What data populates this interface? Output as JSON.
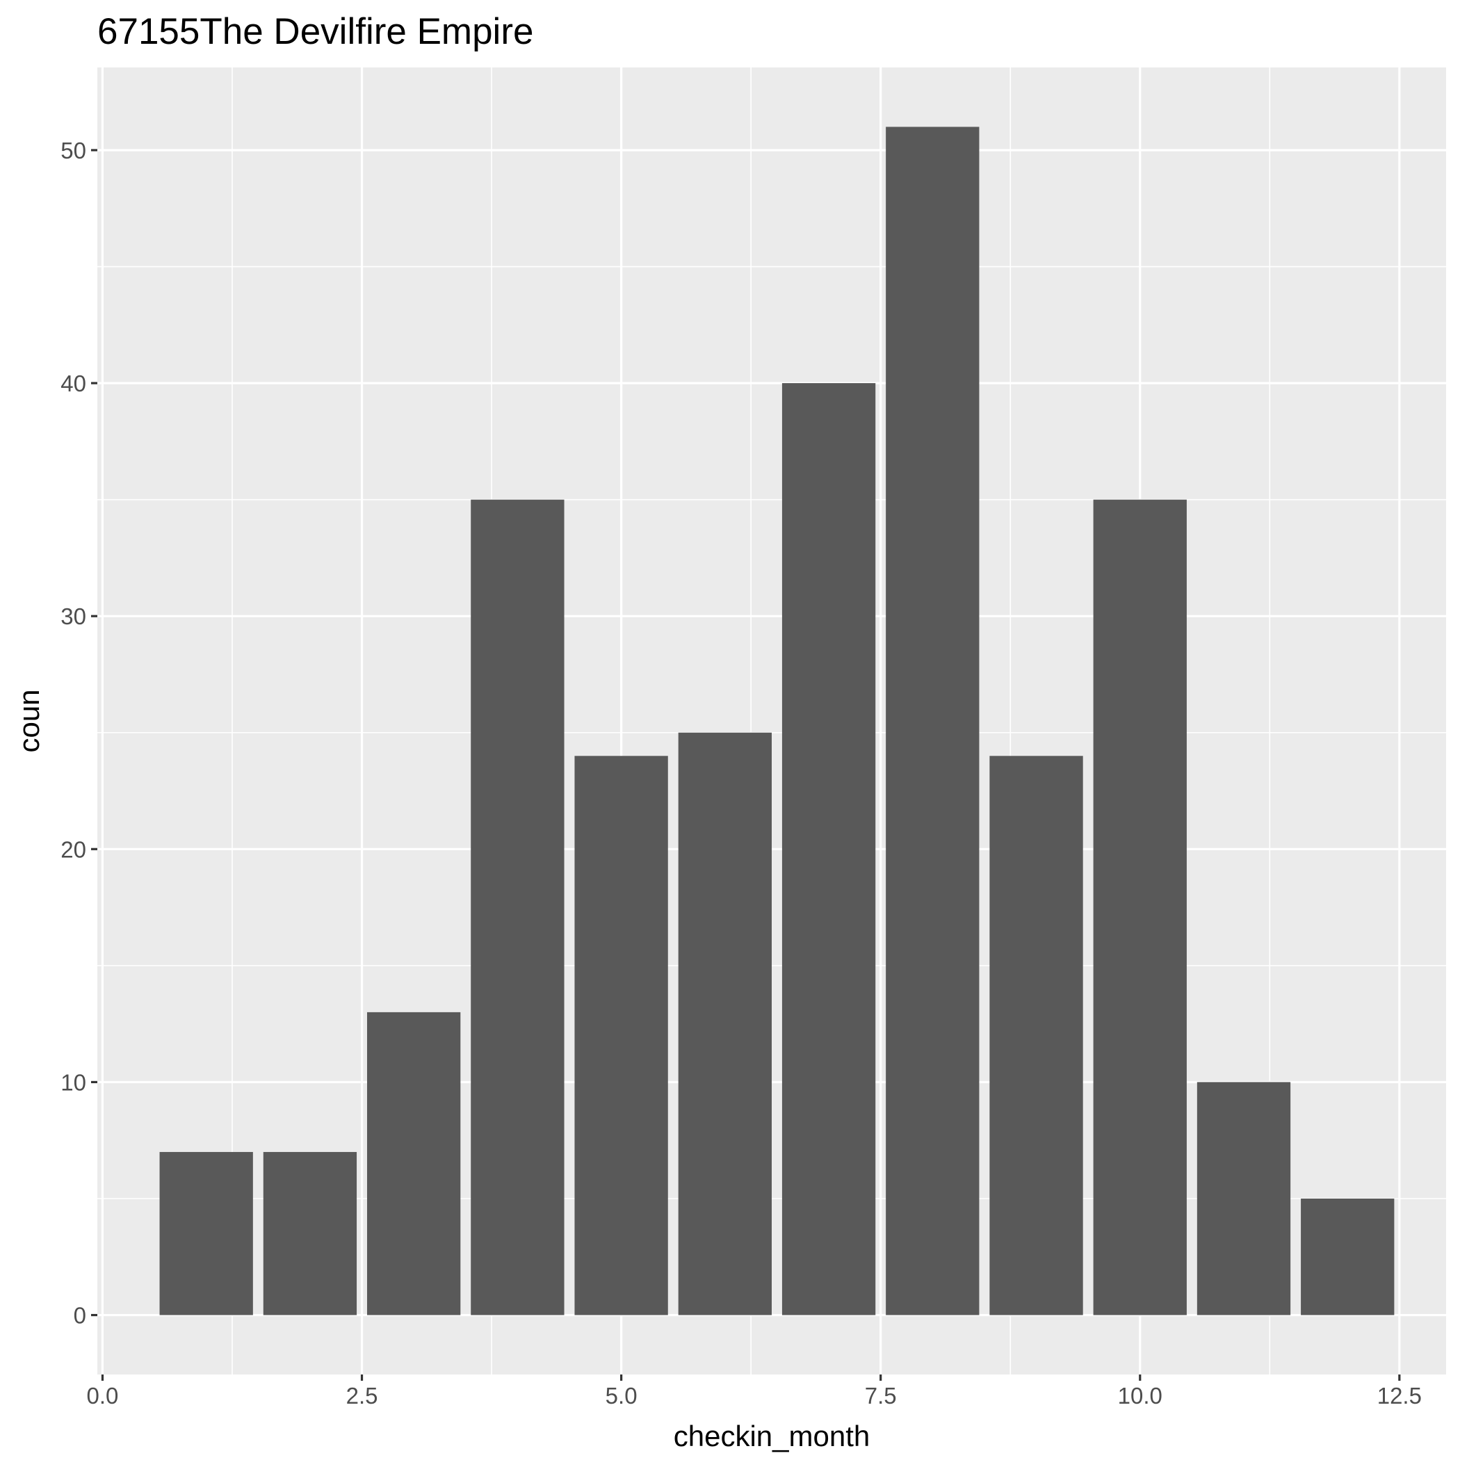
{
  "chart_data": {
    "type": "bar",
    "title": "67155The Devilfire Empire",
    "xlabel": "checkin_month",
    "ylabel": "coun",
    "x": [
      1,
      2,
      3,
      4,
      5,
      6,
      7,
      8,
      9,
      10,
      11,
      12
    ],
    "values": [
      7,
      7,
      13,
      35,
      24,
      25,
      40,
      51,
      24,
      35,
      10,
      5
    ],
    "xlim": [
      -0.05,
      12.95
    ],
    "ylim": [
      -2.55,
      53.55
    ],
    "x_ticks": [
      0,
      2.5,
      5,
      7.5,
      10,
      12.5
    ],
    "x_tick_labels": [
      "0.0",
      "2.5",
      "5.0",
      "7.5",
      "10.0",
      "12.5"
    ],
    "y_ticks": [
      0,
      10,
      20,
      30,
      40,
      50
    ],
    "y_tick_labels": [
      "0",
      "10",
      "20",
      "30",
      "40",
      "50"
    ],
    "bar_width": 0.9,
    "grid": true,
    "colors": {
      "bar": "#595959",
      "panel": "#ebebeb",
      "grid": "#ffffff"
    }
  }
}
